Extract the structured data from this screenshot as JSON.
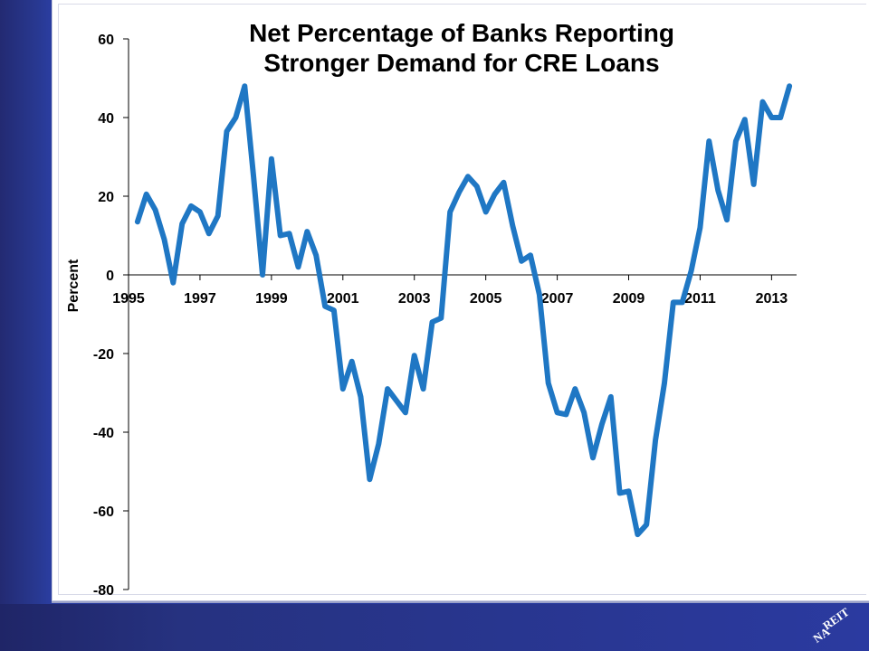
{
  "colors": {
    "background": "#2a3da0",
    "panel": "#ffffff",
    "series_line": "#1f77c4"
  },
  "logo": {
    "icon": "nareit-logo-icon",
    "text_line1": "REIT",
    "text_line2": "NA"
  },
  "chart_data": {
    "type": "line",
    "title_line1": "Net Percentage of Banks Reporting",
    "title_line2": "Stronger Demand for CRE Loans",
    "ylabel": "Percent",
    "xlabel": "",
    "ylim": [
      -80,
      60
    ],
    "yticks": [
      60,
      40,
      20,
      0,
      -20,
      -40,
      -60,
      -80
    ],
    "xlim": [
      1995,
      2013.7
    ],
    "xticks": [
      1995,
      1997,
      1999,
      2001,
      2003,
      2005,
      2007,
      2009,
      2011,
      2013
    ],
    "grid": false,
    "series": [
      {
        "x": [
          1995.25,
          1995.5,
          1995.75,
          1996.0,
          1996.25,
          1996.5,
          1996.75,
          1997.0,
          1997.25,
          1997.5,
          1997.75,
          1998.0,
          1998.25,
          1998.5,
          1998.75,
          1999.0,
          1999.25,
          1999.5,
          1999.75,
          2000.0,
          2000.25,
          2000.5,
          2000.75,
          2001.0,
          2001.25,
          2001.5,
          2001.75,
          2002.0,
          2002.25,
          2002.5,
          2002.75,
          2003.0,
          2003.25,
          2003.5,
          2003.75,
          2004.0,
          2004.25,
          2004.5,
          2004.75,
          2005.0,
          2005.25,
          2005.5,
          2005.75,
          2006.0,
          2006.25,
          2006.5,
          2006.75,
          2007.0,
          2007.25,
          2007.5,
          2007.75,
          2008.0,
          2008.25,
          2008.5,
          2008.75,
          2009.0,
          2009.25,
          2009.5,
          2009.75,
          2010.0,
          2010.25,
          2010.5,
          2010.75,
          2011.0,
          2011.25,
          2011.5,
          2011.75,
          2012.0,
          2012.25,
          2012.5,
          2012.75,
          2013.0,
          2013.25,
          2013.5
        ],
        "values": [
          13.5,
          20.5,
          16.5,
          9.0,
          -2.0,
          13.0,
          17.5,
          16.0,
          10.5,
          15.0,
          36.5,
          40.0,
          48.0,
          25.0,
          0.0,
          29.5,
          10.0,
          10.5,
          2.0,
          11.0,
          5.0,
          -8.0,
          -9.0,
          -29.0,
          -22.0,
          -31.0,
          -52.0,
          -43.0,
          -29.0,
          -32.0,
          -35.0,
          -20.5,
          -29.0,
          -12.0,
          -11.0,
          16.0,
          21.0,
          25.0,
          22.5,
          16.0,
          20.5,
          23.5,
          12.5,
          3.5,
          5.0,
          -5.0,
          -27.5,
          -35.0,
          -35.5,
          -29.0,
          -35.0,
          -46.5,
          -38.0,
          -31.0,
          -55.5,
          -55.0,
          -66.0,
          -63.5,
          -42.0,
          -27.5,
          -7.0,
          -7.0,
          1.0,
          12.0,
          34.0,
          21.5,
          14.0,
          34.0,
          39.5,
          23.0,
          44.0,
          40.0,
          40.0,
          48.0
        ]
      }
    ]
  }
}
